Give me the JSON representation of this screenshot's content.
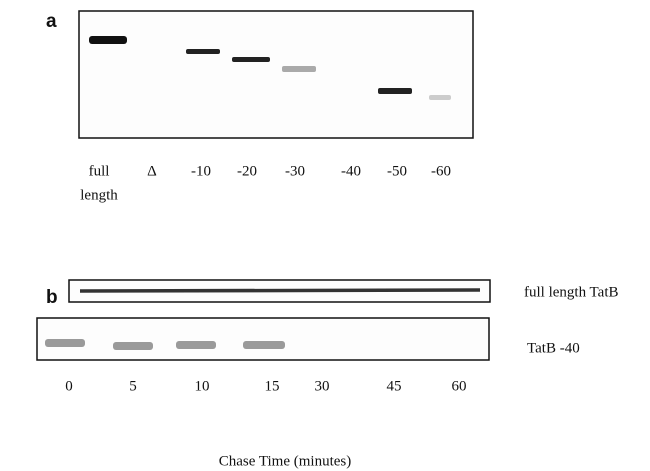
{
  "panel_a": {
    "label": "a",
    "lanes": [
      {
        "label_lines": [
          "full",
          "length"
        ]
      },
      {
        "label_lines": [
          "Δ"
        ]
      },
      {
        "label_lines": [
          "-10"
        ]
      },
      {
        "label_lines": [
          "-20"
        ]
      },
      {
        "label_lines": [
          "-30"
        ]
      },
      {
        "label_lines": [
          "-40"
        ]
      },
      {
        "label_lines": [
          "-50"
        ]
      },
      {
        "label_lines": [
          "-60"
        ]
      }
    ]
  },
  "panel_b": {
    "label": "b",
    "rows": [
      "full length TatB",
      "TatB -40"
    ],
    "time_labels": [
      0,
      5,
      10,
      15,
      30,
      45,
      60
    ],
    "axis_title": "Chase Time (minutes)"
  }
}
